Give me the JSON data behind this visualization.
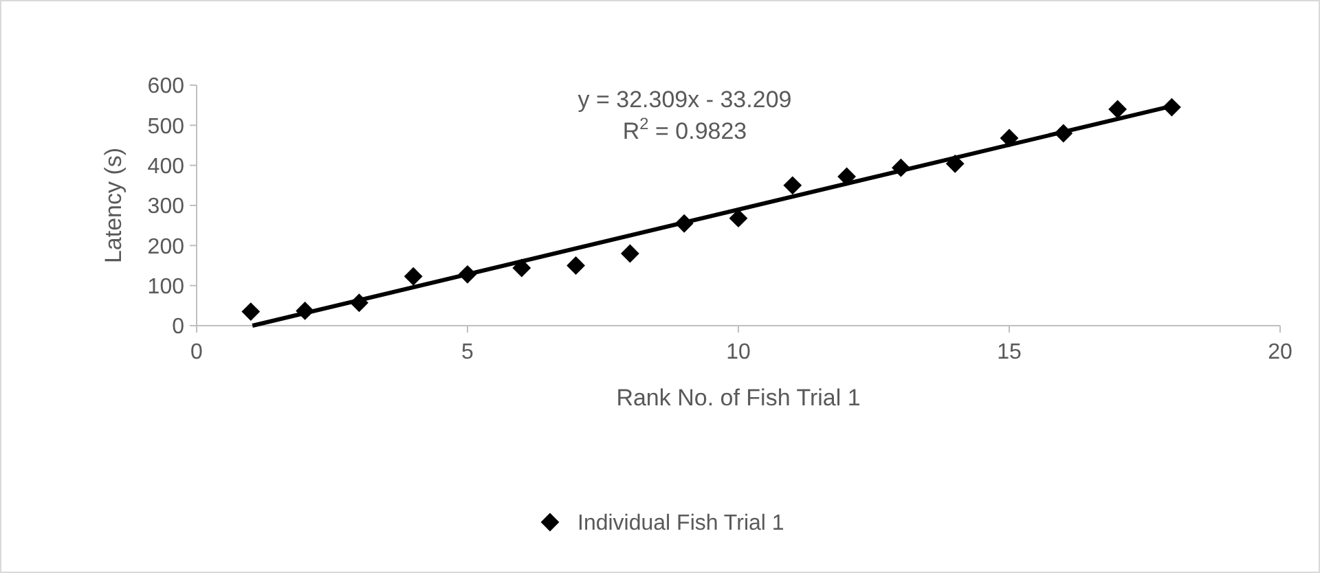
{
  "chart_data": {
    "type": "scatter",
    "xlabel": "Rank No. of Fish Trial 1",
    "ylabel": "Latency (s)",
    "x": [
      1,
      2,
      3,
      4,
      5,
      6,
      7,
      8,
      9,
      10,
      11,
      12,
      13,
      14,
      15,
      16,
      17,
      18
    ],
    "series": [
      {
        "name": "Individual Fish Trial 1",
        "color": "#000000",
        "marker": "diamond",
        "values": [
          35,
          37,
          57,
          123,
          128,
          144,
          150,
          180,
          255,
          268,
          350,
          372,
          394,
          404,
          468,
          480,
          540,
          545
        ]
      },
      {
        "type": "line",
        "color": "#000000",
        "x": [
          1.03,
          18
        ],
        "values": [
          0,
          548
        ]
      }
    ],
    "xlim": [
      0,
      20
    ],
    "xticks": [
      0,
      5,
      10,
      15,
      20
    ],
    "ylim": [
      0,
      600
    ],
    "yticks": [
      0,
      100,
      200,
      300,
      400,
      500,
      600
    ],
    "grid": false,
    "legend": "bottom",
    "annotations": [
      "y = 32.309x - 33.209",
      "R$^{2}$ = 0.9823"
    ]
  }
}
